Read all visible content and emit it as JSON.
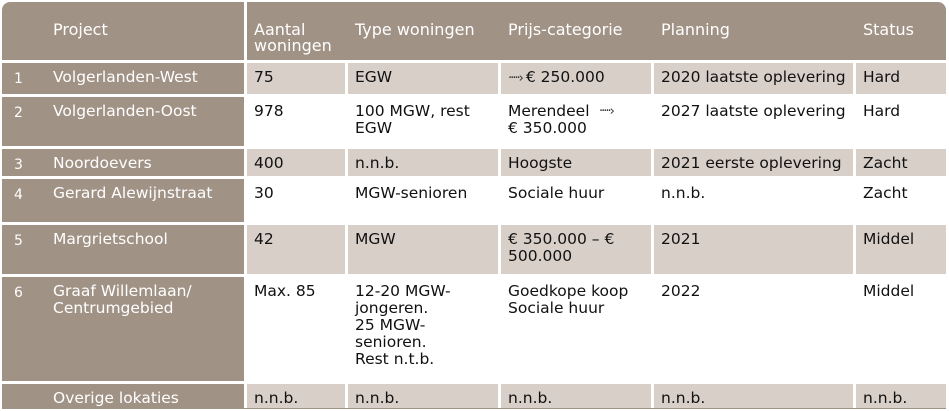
{
  "headers": [
    "",
    "Project",
    "Aantal\nwoningen",
    "Type woningen",
    "Prijs-categorie",
    "Planning",
    "Status"
  ],
  "rows": [
    {
      "num": "1",
      "project": "Volgerlanden-West",
      "aantal": "75",
      "type": "EGW",
      "prijs": "€ 250.000",
      "prijs_arrow": true,
      "planning": "2020 laatste oplevering",
      "status": "Hard",
      "shaded": true
    },
    {
      "num": "2",
      "project": "Volgerlanden-Oost",
      "aantal": "978",
      "type": "100 MGW, rest\nEGW",
      "prijs": "Merendeel \n€ 350.000",
      "prijs_arrow": true,
      "planning": "2027 laatste oplevering",
      "status": "Hard",
      "shaded": false
    },
    {
      "num": "3",
      "project": "Noordoevers",
      "aantal": "400",
      "type": "n.n.b.",
      "prijs": "Hoogste",
      "prijs_arrow": false,
      "planning": "2021 eerste oplevering",
      "status": "Zacht",
      "shaded": true
    },
    {
      "num": "4",
      "project": "Gerard Alewijnstraat",
      "aantal": "30",
      "type": "MGW-senioren",
      "prijs": "Sociale huur",
      "prijs_arrow": false,
      "planning": "n.n.b.",
      "status": "Zacht",
      "shaded": false
    },
    {
      "num": "5",
      "project": "Margrietschool",
      "aantal": "42",
      "type": "MGW",
      "prijs": "€ 350.000 – €\n500.000",
      "prijs_arrow": false,
      "planning": "2021",
      "status": "Middel",
      "shaded": true
    },
    {
      "num": "6",
      "project": "Graaf Willemlaan/\nCentrumgebied",
      "aantal": "Max. 85",
      "type": "12-20 MGW-\njongeren.\n25 MGW-\nsenioren.\nRest n.t.b.",
      "prijs": "Goedkope koop\nSociale huur",
      "prijs_arrow": false,
      "planning": "2022",
      "status": "Middel",
      "shaded": false
    },
    {
      "num": "",
      "project": "Overige lokaties",
      "aantal": "n.n.b.",
      "type": "n.n.b.",
      "prijs": "n.n.b.",
      "prijs_arrow": false,
      "planning": "n.n.b.",
      "status": "n.n.b.",
      "shaded": true
    }
  ]
}
